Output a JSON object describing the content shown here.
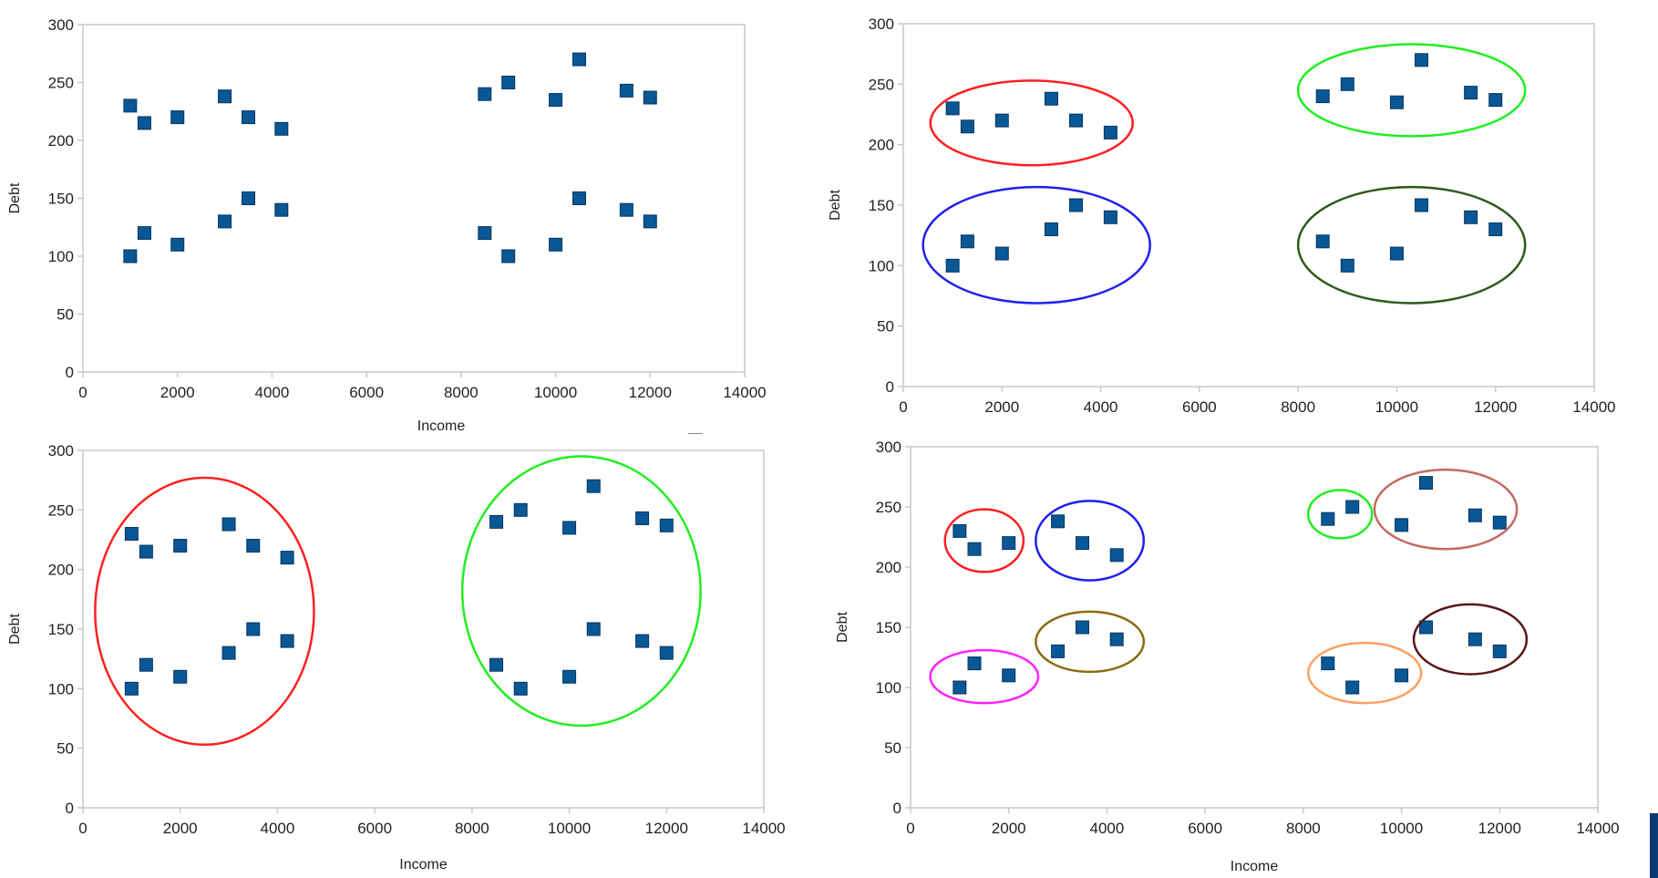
{
  "colors": {
    "marker": "#0a5796",
    "marker_stroke": "#06365f",
    "axis": "#c9c9c9",
    "tick_text": "#222222",
    "label_text": "#222222",
    "edge_bar": "#0b3a73"
  },
  "points": {
    "x": [
      1000,
      1300,
      2000,
      3000,
      3500,
      4200,
      1000,
      1300,
      2000,
      3000,
      3500,
      4200,
      8500,
      9000,
      10000,
      10500,
      11500,
      12000,
      8500,
      9000,
      10000,
      10500,
      11500,
      12000
    ],
    "y": [
      230,
      215,
      220,
      238,
      220,
      210,
      100,
      120,
      110,
      130,
      150,
      140,
      240,
      250,
      235,
      270,
      243,
      237,
      120,
      100,
      110,
      150,
      140,
      130
    ]
  },
  "chart_data": [
    {
      "type": "scatter",
      "id": "top-left",
      "title": "",
      "xlabel": "Income",
      "ylabel": "Debt",
      "xlim": [
        0,
        14000
      ],
      "ylim": [
        0,
        300
      ],
      "xticks": [
        "0",
        "2000",
        "4000",
        "6000",
        "8000",
        "10000",
        "12000",
        "14000"
      ],
      "yticks": [
        "0",
        "50",
        "100",
        "150",
        "200",
        "250",
        "300"
      ],
      "grid": false,
      "clusters": []
    },
    {
      "type": "scatter",
      "id": "top-right",
      "title": "",
      "xlabel": "",
      "ylabel": "Debt",
      "xlim": [
        0,
        14000
      ],
      "ylim": [
        0,
        300
      ],
      "xticks": [
        "0",
        "2000",
        "4000",
        "6000",
        "8000",
        "10000",
        "12000",
        "14000"
      ],
      "yticks": [
        "0",
        "50",
        "100",
        "150",
        "200",
        "250",
        "300"
      ],
      "grid": false,
      "clusters": [
        {
          "color": "#ff2020",
          "cx": 2600,
          "cy": 218,
          "rx": 2050,
          "ry": 35
        },
        {
          "color": "#2020ee",
          "cx": 2700,
          "cy": 117,
          "rx": 2300,
          "ry": 48
        },
        {
          "color": "#22ee22",
          "cx": 10300,
          "cy": 245,
          "rx": 2300,
          "ry": 38
        },
        {
          "color": "#2f5a1e",
          "cx": 10300,
          "cy": 117,
          "rx": 2300,
          "ry": 48
        }
      ]
    },
    {
      "type": "scatter",
      "id": "bottom-left",
      "title": "",
      "xlabel": "Income",
      "ylabel": "Debt",
      "xlim": [
        0,
        14000
      ],
      "ylim": [
        0,
        300
      ],
      "xticks": [
        "0",
        "2000",
        "4000",
        "6000",
        "8000",
        "10000",
        "12000",
        "14000"
      ],
      "yticks": [
        "0",
        "50",
        "100",
        "150",
        "200",
        "250",
        "300"
      ],
      "grid": false,
      "clusters": [
        {
          "color": "#ff2020",
          "cx": 2500,
          "cy": 165,
          "rx": 2250,
          "ry": 112
        },
        {
          "color": "#22ee22",
          "cx": 10250,
          "cy": 182,
          "rx": 2450,
          "ry": 113
        }
      ]
    },
    {
      "type": "scatter",
      "id": "bottom-right",
      "title": "",
      "xlabel": "Income",
      "ylabel": "Debt",
      "xlim": [
        0,
        14000
      ],
      "ylim": [
        0,
        300
      ],
      "xticks": [
        "0",
        "2000",
        "4000",
        "6000",
        "8000",
        "10000",
        "12000",
        "14000"
      ],
      "yticks": [
        "0",
        "50",
        "100",
        "150",
        "200",
        "250",
        "300"
      ],
      "grid": false,
      "clusters": [
        {
          "color": "#ff2020",
          "cx": 1500,
          "cy": 222,
          "rx": 800,
          "ry": 26
        },
        {
          "color": "#2020ee",
          "cx": 3650,
          "cy": 222,
          "rx": 1100,
          "ry": 33
        },
        {
          "color": "#22ee22",
          "cx": 8750,
          "cy": 244,
          "rx": 650,
          "ry": 20
        },
        {
          "color": "#c26b63",
          "cx": 10900,
          "cy": 248,
          "rx": 1450,
          "ry": 33
        },
        {
          "color": "#ff22ff",
          "cx": 1500,
          "cy": 109,
          "rx": 1100,
          "ry": 22
        },
        {
          "color": "#8a6b12",
          "cx": 3650,
          "cy": 138,
          "rx": 1100,
          "ry": 25
        },
        {
          "color": "#ffa060",
          "cx": 9250,
          "cy": 112,
          "rx": 1150,
          "ry": 25
        },
        {
          "color": "#5a1818",
          "cx": 11400,
          "cy": 140,
          "rx": 1150,
          "ry": 29
        }
      ]
    }
  ]
}
